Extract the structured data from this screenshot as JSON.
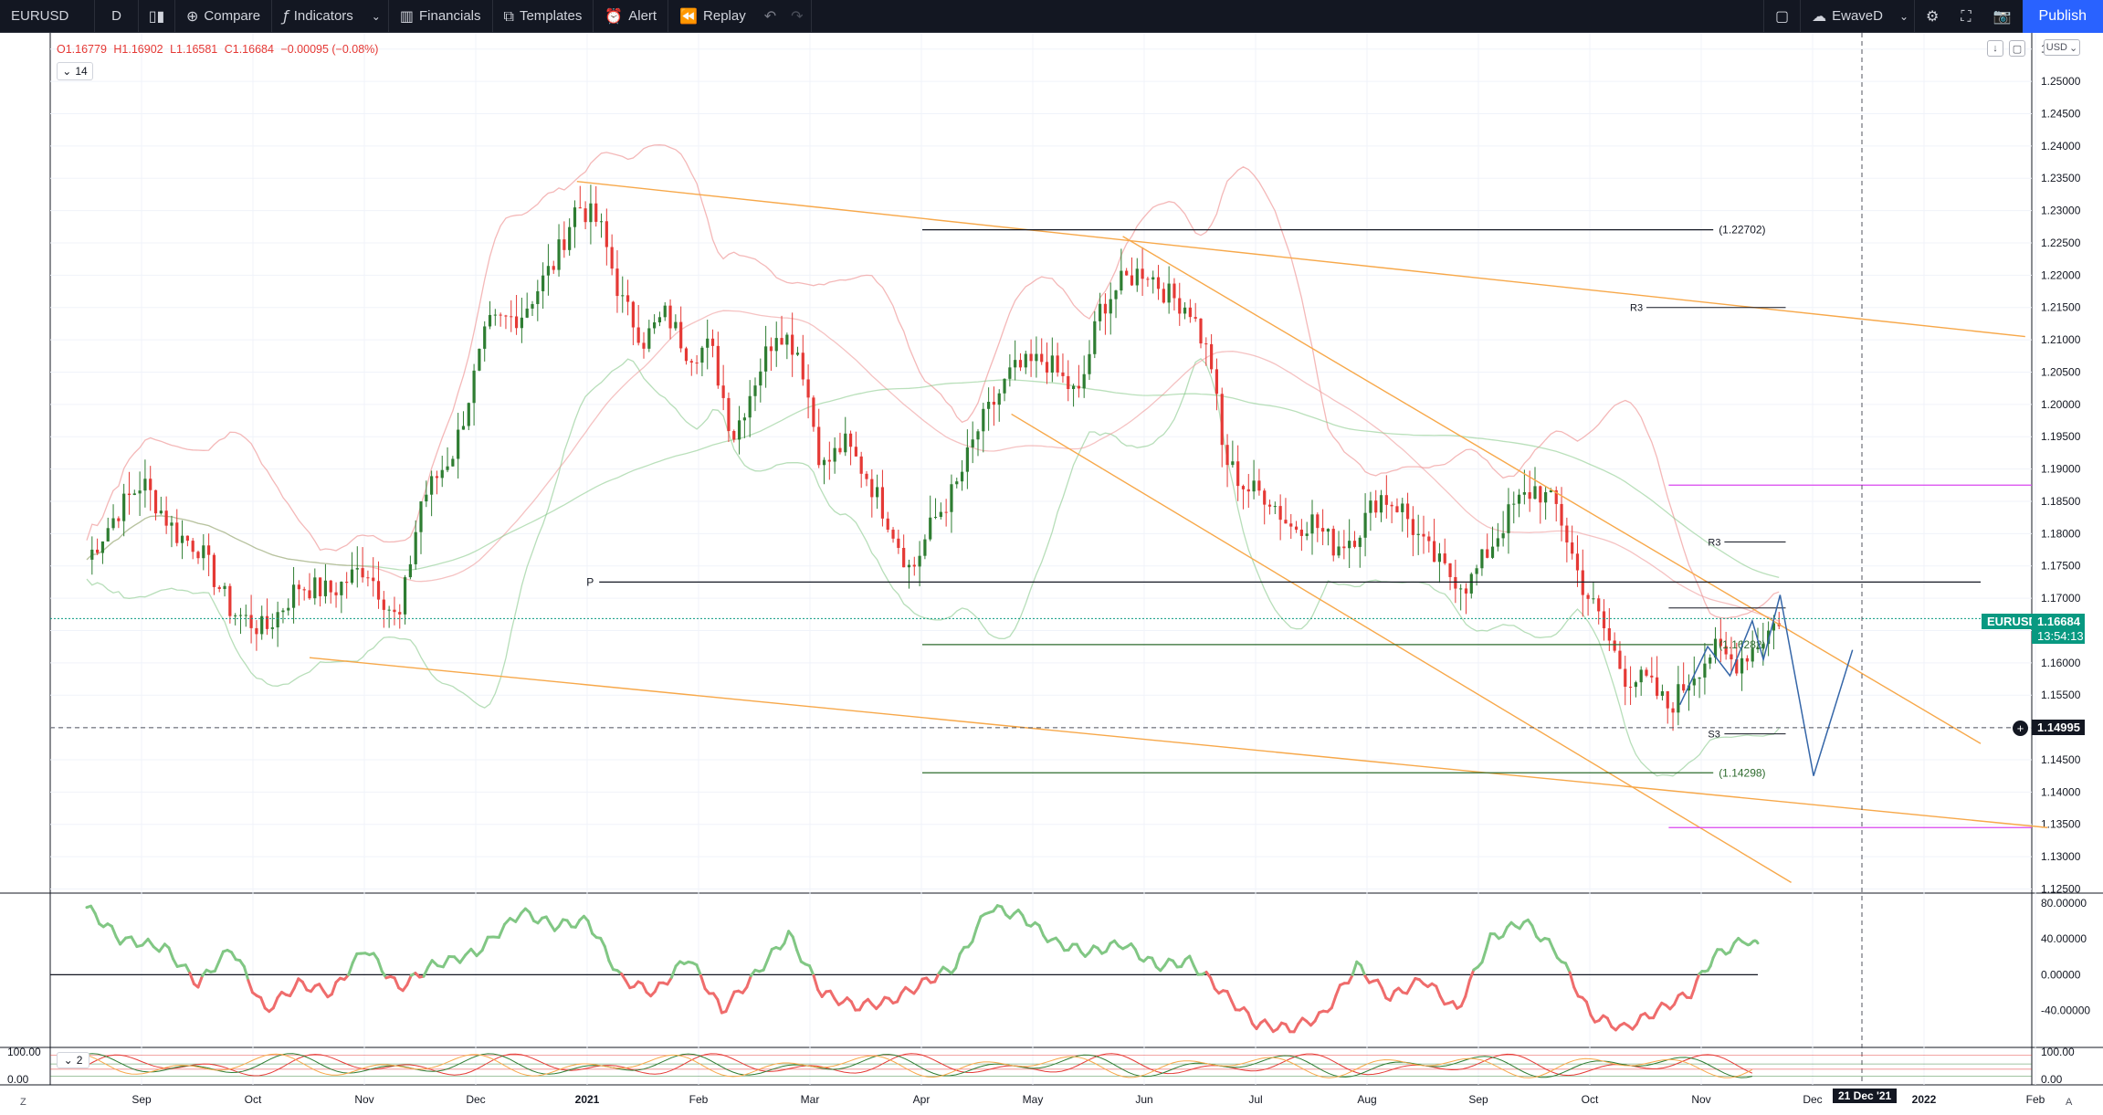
{
  "toolbar": {
    "symbol": "EURUSD",
    "interval": "D",
    "compare": "Compare",
    "indicators": "Indicators",
    "financials": "Financials",
    "templates": "Templates",
    "alert": "Alert",
    "replay": "Replay",
    "layout_name": "EwaveD",
    "publish": "Publish"
  },
  "legend": {
    "open": "O1.16779",
    "high": "H1.16902",
    "low": "L1.16581",
    "close": "C1.16684",
    "change": "−0.00095 (−0.08%)",
    "indicator_count": "14",
    "oscillator_count": "2"
  },
  "currency": "USD",
  "price_tag": {
    "symbol": "EURUSD",
    "price": "1.16684",
    "countdown": "13:54:13"
  },
  "crosshair_tag": {
    "price": "1.14995",
    "date": "21 Dec '21"
  },
  "corner_labels": {
    "left": "Z",
    "right": "A"
  },
  "colors": {
    "up": "#2e7d32",
    "down": "#e53935",
    "trend": "#f7a84a",
    "level": "#131722",
    "fib": "#2e6b2e",
    "pivot": "#d946ef",
    "wave": "#3566a8",
    "osc_up": "#81c784",
    "osc_down": "#ef6c6c"
  },
  "chart_data": {
    "type": "candlestick",
    "y_axis": [
      "1.25500",
      "1.25000",
      "1.24500",
      "1.24000",
      "1.23500",
      "1.23000",
      "1.22500",
      "1.22000",
      "1.21500",
      "1.21000",
      "1.20500",
      "1.20000",
      "1.19500",
      "1.19000",
      "1.18500",
      "1.18000",
      "1.17500",
      "1.17000",
      "1.16500",
      "1.16000",
      "1.15500",
      "1.15000",
      "1.14500",
      "1.14000",
      "1.13500",
      "1.13000",
      "1.12500"
    ],
    "ylim": [
      1.1245,
      1.2575
    ],
    "x_axis": [
      "Sep",
      "Oct",
      "Nov",
      "Dec",
      "2021",
      "Feb",
      "Mar",
      "Apr",
      "May",
      "Jun",
      "Jul",
      "Aug",
      "Sep",
      "Oct",
      "Nov",
      "Dec",
      "2022",
      "Feb"
    ],
    "months_pos": [
      0.5,
      1.5,
      2.5,
      3.5,
      4.5,
      5.5,
      6.5,
      7.5,
      8.5,
      9.5,
      10.5,
      11.5,
      12.5,
      13.5,
      14.5,
      15.5,
      16.5,
      17.5
    ],
    "price_path": [
      [
        0,
        1.176
      ],
      [
        0.3,
        1.184
      ],
      [
        0.5,
        1.188
      ],
      [
        0.8,
        1.18
      ],
      [
        1.0,
        1.178
      ],
      [
        1.3,
        1.168
      ],
      [
        1.6,
        1.165
      ],
      [
        1.9,
        1.172
      ],
      [
        2.2,
        1.171
      ],
      [
        2.5,
        1.175
      ],
      [
        2.8,
        1.166
      ],
      [
        3.0,
        1.185
      ],
      [
        3.3,
        1.193
      ],
      [
        3.6,
        1.212
      ],
      [
        3.9,
        1.214
      ],
      [
        4.2,
        1.222
      ],
      [
        4.4,
        1.231
      ],
      [
        4.6,
        1.228
      ],
      [
        4.8,
        1.216
      ],
      [
        5.0,
        1.21
      ],
      [
        5.2,
        1.214
      ],
      [
        5.4,
        1.208
      ],
      [
        5.6,
        1.209
      ],
      [
        5.8,
        1.195
      ],
      [
        6.0,
        1.204
      ],
      [
        6.2,
        1.212
      ],
      [
        6.4,
        1.208
      ],
      [
        6.6,
        1.19
      ],
      [
        6.8,
        1.194
      ],
      [
        7.0,
        1.189
      ],
      [
        7.2,
        1.182
      ],
      [
        7.4,
        1.174
      ],
      [
        7.6,
        1.182
      ],
      [
        7.8,
        1.187
      ],
      [
        8.0,
        1.196
      ],
      [
        8.3,
        1.205
      ],
      [
        8.6,
        1.207
      ],
      [
        8.9,
        1.201
      ],
      [
        9.1,
        1.215
      ],
      [
        9.3,
        1.219
      ],
      [
        9.5,
        1.221
      ],
      [
        9.7,
        1.217
      ],
      [
        9.9,
        1.215
      ],
      [
        10.1,
        1.206
      ],
      [
        10.2,
        1.192
      ],
      [
        10.4,
        1.187
      ],
      [
        10.6,
        1.186
      ],
      [
        10.8,
        1.181
      ],
      [
        11.0,
        1.182
      ],
      [
        11.2,
        1.178
      ],
      [
        11.4,
        1.18
      ],
      [
        11.6,
        1.186
      ],
      [
        11.8,
        1.184
      ],
      [
        12.0,
        1.178
      ],
      [
        12.2,
        1.174
      ],
      [
        12.4,
        1.172
      ],
      [
        12.6,
        1.178
      ],
      [
        12.8,
        1.184
      ],
      [
        13.0,
        1.187
      ],
      [
        13.2,
        1.184
      ],
      [
        13.4,
        1.173
      ],
      [
        13.6,
        1.166
      ],
      [
        13.8,
        1.158
      ],
      [
        14.0,
        1.157
      ],
      [
        14.2,
        1.153
      ],
      [
        14.4,
        1.158
      ],
      [
        14.6,
        1.162
      ],
      [
        14.8,
        1.16
      ],
      [
        15.0,
        1.163
      ],
      [
        15.2,
        1.167
      ]
    ],
    "horizontal_levels": [
      {
        "price": 1.22702,
        "label": "(1.22702)",
        "x0": 7.5,
        "x1": 14.6
      },
      {
        "price": 1.16282,
        "label": "(1.16282)",
        "x0": 7.5,
        "x1": 14.6
      },
      {
        "price": 1.14298,
        "label": "(1.14298)",
        "x0": 7.5,
        "x1": 14.6
      },
      {
        "price": 1.1725,
        "label": "P",
        "x0": 4.6,
        "x1": 17.0
      }
    ],
    "pivots": [
      {
        "label": "R3",
        "price": 1.215
      },
      {
        "label": "R3",
        "price": 1.1787
      },
      {
        "label": "S3",
        "price": 1.149
      }
    ],
    "oscillator": {
      "y_axis": [
        "80.00000",
        "40.00000",
        "0.00000",
        "-40.00000"
      ],
      "ylim": [
        -80,
        90
      ],
      "values": [
        [
          0,
          75
        ],
        [
          0.3,
          40
        ],
        [
          0.7,
          30
        ],
        [
          1.0,
          -10
        ],
        [
          1.3,
          30
        ],
        [
          1.6,
          -40
        ],
        [
          1.9,
          -10
        ],
        [
          2.2,
          -20
        ],
        [
          2.5,
          30
        ],
        [
          2.8,
          -15
        ],
        [
          3.1,
          10
        ],
        [
          3.5,
          25
        ],
        [
          3.9,
          70
        ],
        [
          4.2,
          55
        ],
        [
          4.5,
          60
        ],
        [
          4.8,
          -5
        ],
        [
          5.1,
          -20
        ],
        [
          5.4,
          20
        ],
        [
          5.7,
          -40
        ],
        [
          6.0,
          0
        ],
        [
          6.3,
          45
        ],
        [
          6.6,
          -20
        ],
        [
          6.9,
          -35
        ],
        [
          7.2,
          -30
        ],
        [
          7.5,
          -10
        ],
        [
          7.8,
          10
        ],
        [
          8.1,
          75
        ],
        [
          8.4,
          65
        ],
        [
          8.7,
          35
        ],
        [
          9.0,
          25
        ],
        [
          9.3,
          35
        ],
        [
          9.6,
          10
        ],
        [
          9.9,
          15
        ],
        [
          10.2,
          -20
        ],
        [
          10.5,
          -55
        ],
        [
          10.8,
          -60
        ],
        [
          11.1,
          -45
        ],
        [
          11.4,
          10
        ],
        [
          11.7,
          -25
        ],
        [
          12.0,
          -5
        ],
        [
          12.3,
          -40
        ],
        [
          12.6,
          40
        ],
        [
          12.9,
          60
        ],
        [
          13.2,
          25
        ],
        [
          13.5,
          -45
        ],
        [
          13.8,
          -60
        ],
        [
          14.1,
          -40
        ],
        [
          14.4,
          -20
        ],
        [
          14.6,
          20
        ],
        [
          14.9,
          40
        ],
        [
          15.0,
          30
        ]
      ]
    },
    "oscillator2": {
      "y_axis": [
        "100.00",
        "0.00"
      ],
      "ylim": [
        0,
        100
      ]
    }
  }
}
